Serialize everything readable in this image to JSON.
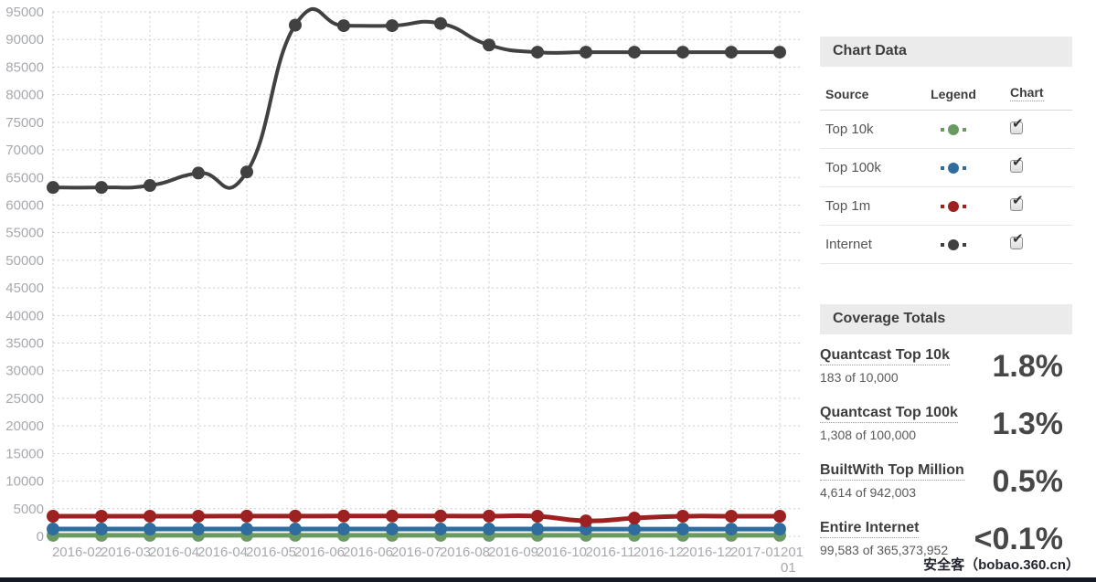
{
  "chart_data": {
    "type": "line",
    "title": "",
    "xlabel": "",
    "ylabel": "",
    "x_labels": [
      "2016-02",
      "2016-03",
      "2016-04",
      "2016-04",
      "2016-05",
      "2016-06",
      "2016-06",
      "2016-07",
      "2016-08",
      "2016-09",
      "2016-10",
      "2016-11",
      "2016-12",
      "2016-12",
      "2017-01",
      "2017-01"
    ],
    "ylim": [
      0,
      95000
    ],
    "y_ticks": [
      0,
      5000,
      10000,
      15000,
      20000,
      25000,
      30000,
      35000,
      40000,
      45000,
      50000,
      55000,
      60000,
      65000,
      70000,
      75000,
      80000,
      85000,
      90000,
      95000
    ],
    "grid": "dotted",
    "legend_position": "sidebar-table",
    "series": [
      {
        "name": "Top 10k",
        "color": "#6a9a62",
        "values": [
          180,
          180,
          180,
          180,
          180,
          180,
          180,
          180,
          180,
          180,
          180,
          180,
          180,
          180,
          180,
          183
        ]
      },
      {
        "name": "Top 100k",
        "color": "#2e6d9d",
        "values": [
          1320,
          1320,
          1320,
          1320,
          1320,
          1320,
          1320,
          1320,
          1320,
          1320,
          1320,
          1310,
          1310,
          1308,
          1308,
          1308
        ]
      },
      {
        "name": "Top 1m",
        "color": "#9e2121",
        "values": [
          3640,
          3640,
          3650,
          3650,
          3660,
          3660,
          3680,
          3680,
          3680,
          3660,
          3640,
          2800,
          3300,
          3640,
          3640,
          3640
        ]
      },
      {
        "name": "Internet",
        "color": "#414141",
        "values": [
          63200,
          63200,
          63550,
          65800,
          66000,
          92600,
          92500,
          92500,
          92900,
          89000,
          87700,
          87700,
          87700,
          87700,
          87700,
          87700
        ]
      }
    ]
  },
  "sidebar": {
    "chart_data_panel": {
      "title": "Chart Data",
      "columns": [
        "Source",
        "Legend",
        "Chart"
      ],
      "rows": [
        {
          "source": "Top 10k",
          "color": "#6a9a62",
          "checked": true
        },
        {
          "source": "Top 100k",
          "color": "#2e6d9d",
          "checked": true
        },
        {
          "source": "Top 1m",
          "color": "#9e2121",
          "checked": true
        },
        {
          "source": "Internet",
          "color": "#414141",
          "checked": true
        }
      ]
    },
    "coverage_panel": {
      "title": "Coverage Totals",
      "items": [
        {
          "label": "Quantcast Top 10k",
          "detail": "183 of 10,000",
          "percent": "1.8%"
        },
        {
          "label": "Quantcast Top 100k",
          "detail": "1,308 of 100,000",
          "percent": "1.3%"
        },
        {
          "label": "BuiltWith Top Million",
          "detail": "4,614 of 942,003",
          "percent": "0.5%"
        },
        {
          "label": "Entire Internet",
          "detail": "99,583 of 365,373,952",
          "percent": "<0.1%"
        }
      ]
    }
  },
  "watermark": "安全客（bobao.360.cn）",
  "colors": {
    "panel_header_bg": "#ebebeb",
    "axis_text": "#a7a9ae",
    "grid_line": "#cccccc",
    "bottom_bar": "#151923",
    "checkmark": "#333333"
  }
}
